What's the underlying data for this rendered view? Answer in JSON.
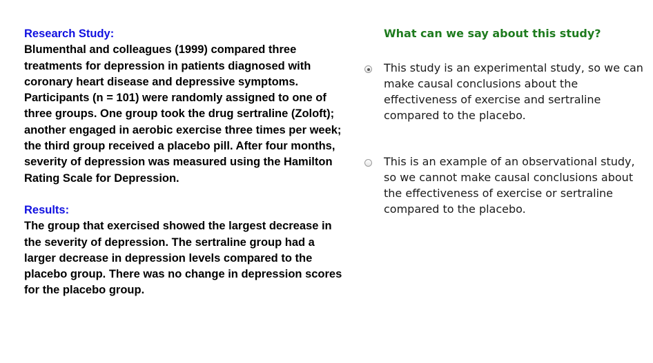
{
  "research": {
    "heading": "Research Study:",
    "text": "Blumenthal and colleagues (1999) compared three treatments for depression in patients diagnosed with coronary heart disease and depressive symptoms. Participants (n = 101) were randomly assigned to one of three groups. One group took the drug sertraline (Zoloft); another engaged in aerobic exercise three times per week; the third group received a placebo pill. After four months, severity of depression was measured using the Hamilton Rating Scale for Depression."
  },
  "results": {
    "heading": "Results:",
    "text": "The group that exercised showed the largest decrease in the severity of depression. The sertraline group had a larger decrease in depression levels compared to the placebo group. There was no change in depression scores for the placebo group."
  },
  "quiz": {
    "question": "What can we say about this study?",
    "options": [
      {
        "text": "This study is an experimental study, so we can make causal conclusions about the effectiveness of exercise and sertraline compared to the placebo.",
        "selected": true
      },
      {
        "text": "This is an example of an observational study, so we cannot make causal conclusions about the effectiveness of exercise or sertraline compared to the placebo.",
        "selected": false
      }
    ]
  },
  "colors": {
    "heading_blue": "#1010e0",
    "question_green": "#1e7b1e"
  }
}
